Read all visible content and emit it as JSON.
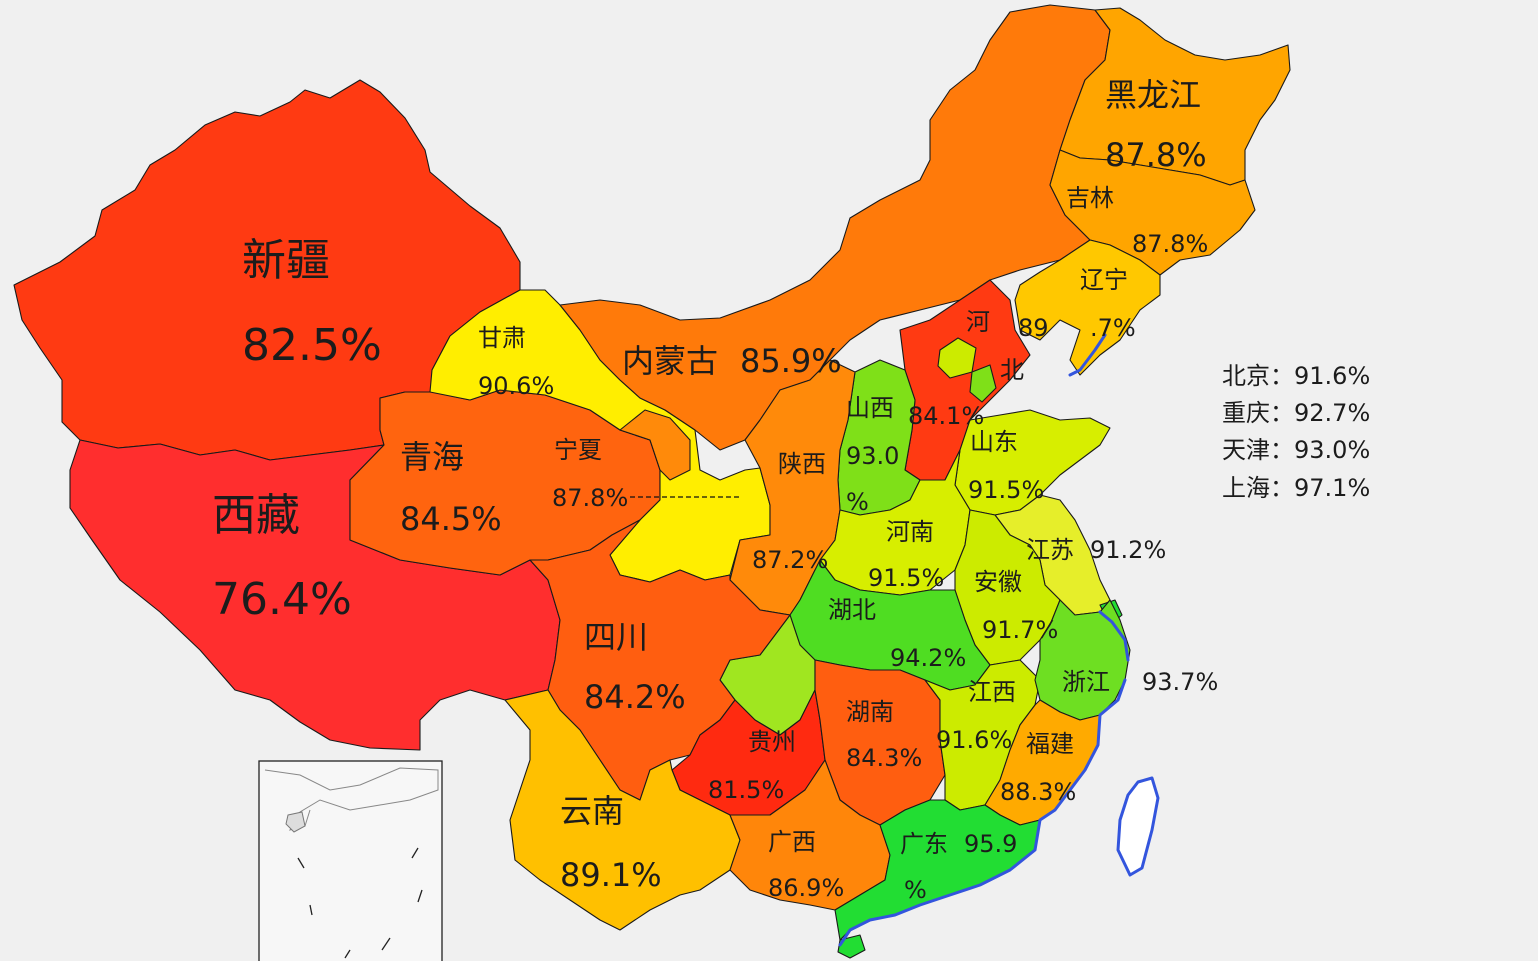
{
  "colors": {
    "background": "#f0f0f0",
    "scale": [
      "#ff2e2e",
      "#ff3a12",
      "#ff5e10",
      "#ff8a0a",
      "#ffb100",
      "#ffd200",
      "#ffee00",
      "#e6ee2a",
      "#cceb00",
      "#7fe018",
      "#22dd33"
    ],
    "coastline": "#3355dd"
  },
  "provinces": [
    {
      "key": "xinjiang",
      "name": "新疆",
      "pct": "82.5%",
      "value": 82.5,
      "color": "#ff3a12"
    },
    {
      "key": "xizang",
      "name": "西藏",
      "pct": "76.4%",
      "value": 76.4,
      "color": "#ff2e2e"
    },
    {
      "key": "qinghai",
      "name": "青海",
      "pct": "84.5%",
      "value": 84.5,
      "color": "#ff640f"
    },
    {
      "key": "gansu",
      "name": "甘肃",
      "pct": "90.6%",
      "value": 90.6,
      "color": "#ffee00"
    },
    {
      "key": "ningxia",
      "name": "宁夏",
      "pct": "87.8%",
      "value": 87.8,
      "color": "#ff8a0a"
    },
    {
      "key": "neimenggu",
      "name": "内蒙古",
      "pct": "85.9%",
      "value": 85.9,
      "color": "#ff7a0a"
    },
    {
      "key": "heilongjiang",
      "name": "黑龙江",
      "pct": "87.8%",
      "value": 87.8,
      "color": "#ffa500"
    },
    {
      "key": "jilin",
      "name": "吉林",
      "pct": "87.8%",
      "value": 87.8,
      "color": "#ffa500"
    },
    {
      "key": "liaoning",
      "name": "辽宁",
      "pct_a": "89",
      "pct_b": ".7%",
      "value": 89.7,
      "color": "#ffc800"
    },
    {
      "key": "hebei",
      "name_a": "河",
      "name_b": "北",
      "pct": "84.1%",
      "value": 84.1,
      "color": "#ff3a12"
    },
    {
      "key": "shanxi",
      "name": "山西",
      "pct_a": "93.0",
      "pct_b": "%",
      "value": 93.0,
      "color": "#7fe018"
    },
    {
      "key": "shandong",
      "name": "山东",
      "pct": "91.5%",
      "value": 91.5,
      "color": "#d7ee00"
    },
    {
      "key": "shaanxi",
      "name": "陕西",
      "pct": "87.2%",
      "value": 87.2,
      "color": "#ff8a0a"
    },
    {
      "key": "henan",
      "name": "河南",
      "pct": "91.5%",
      "value": 91.5,
      "color": "#d7ee00"
    },
    {
      "key": "jiangsu",
      "name": "江苏",
      "pct": "91.2%",
      "value": 91.2,
      "color": "#e6ee2a"
    },
    {
      "key": "anhui",
      "name": "安徽",
      "pct": "91.7%",
      "value": 91.7,
      "color": "#cceb00"
    },
    {
      "key": "hubei",
      "name": "湖北",
      "pct": "94.2%",
      "value": 94.2,
      "color": "#4fdd22"
    },
    {
      "key": "sichuan",
      "name": "四川",
      "pct": "84.2%",
      "value": 84.2,
      "color": "#ff5e10"
    },
    {
      "key": "chongqing",
      "name": "重庆",
      "value": 92.7,
      "color": "#a0e620"
    },
    {
      "key": "zhejiang",
      "name": "浙江",
      "pct": "93.7%",
      "value": 93.7,
      "color": "#6edf22"
    },
    {
      "key": "jiangxi",
      "name": "江西",
      "pct": "91.6%",
      "value": 91.6,
      "color": "#cceb00"
    },
    {
      "key": "hunan",
      "name": "湖南",
      "pct": "84.3%",
      "value": 84.3,
      "color": "#ff5e10"
    },
    {
      "key": "guizhou",
      "name": "贵州",
      "pct": "81.5%",
      "value": 81.5,
      "color": "#ff2a10"
    },
    {
      "key": "fujian",
      "name": "福建",
      "pct": "88.3%",
      "value": 88.3,
      "color": "#ffaa00"
    },
    {
      "key": "yunnan",
      "name": "云南",
      "pct": "89.1%",
      "value": 89.1,
      "color": "#ffc000"
    },
    {
      "key": "guangxi",
      "name": "广西",
      "pct": "86.9%",
      "value": 86.9,
      "color": "#ff860a"
    },
    {
      "key": "guangdong",
      "name": "广东",
      "pct_a": "95.9",
      "pct_b": "%",
      "value": 95.9,
      "color": "#22dd33"
    },
    {
      "key": "beijing",
      "name": "北京",
      "value": 91.6,
      "color": "#cceb00"
    },
    {
      "key": "tianjin",
      "name": "天津",
      "value": 93.0,
      "color": "#7fe018"
    }
  ],
  "legend": [
    {
      "city": "北京：",
      "pct": "91.6%"
    },
    {
      "city": "重庆：",
      "pct": "92.7%"
    },
    {
      "city": "天津：",
      "pct": "93.0%"
    },
    {
      "city": "上海：",
      "pct": "97.1%"
    }
  ]
}
